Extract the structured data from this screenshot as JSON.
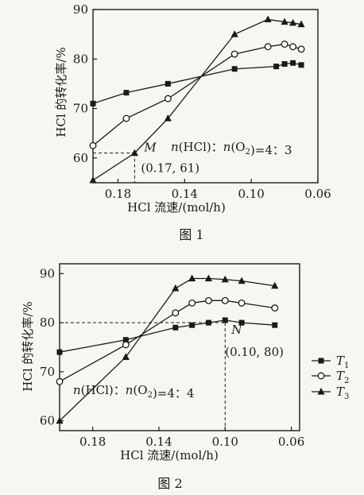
{
  "chart_data": [
    {
      "type": "line",
      "caption": "图 1",
      "xlabel": "HCl 流速/(mol/h)",
      "ylabel": "HCl 的转化率/%",
      "xlim": [
        0.195,
        0.06
      ],
      "ylim": [
        55,
        90
      ],
      "xticks": [
        "0.18",
        "0.14",
        "0.10",
        "0.06"
      ],
      "xtick_values": [
        0.18,
        0.14,
        0.1,
        0.06
      ],
      "yticks": [
        "60",
        "70",
        "80",
        "90"
      ],
      "ytick_values": [
        60,
        70,
        80,
        90
      ],
      "annotation": "n(HCl)：n(O₂)=4：3",
      "point_label": "M",
      "point_coords": "(0.17, 61)",
      "point_x": 0.17,
      "point_y": 61,
      "series": [
        {
          "marker": "square",
          "x": [
            0.195,
            0.175,
            0.15,
            0.11,
            0.085,
            0.08,
            0.075,
            0.07
          ],
          "values": [
            71,
            73.2,
            75,
            78,
            78.5,
            79,
            79.2,
            78.8
          ]
        },
        {
          "marker": "circle",
          "x": [
            0.195,
            0.175,
            0.15,
            0.11,
            0.09,
            0.08,
            0.075,
            0.07
          ],
          "values": [
            62.5,
            68,
            72,
            81,
            82.5,
            83,
            82.5,
            82
          ]
        },
        {
          "marker": "triangle",
          "x": [
            0.195,
            0.17,
            0.15,
            0.11,
            0.09,
            0.08,
            0.075,
            0.07
          ],
          "values": [
            55.5,
            61,
            68,
            85,
            88,
            87.5,
            87.3,
            87
          ]
        }
      ]
    },
    {
      "type": "line",
      "caption": "图 2",
      "xlabel": "HCl 流速/(mol/h)",
      "ylabel": "HCl 的转化率/%",
      "xlim": [
        0.2,
        0.055
      ],
      "ylim": [
        58,
        92
      ],
      "xticks": [
        "0.18",
        "0.14",
        "0.10",
        "0.06"
      ],
      "xtick_values": [
        0.18,
        0.14,
        0.1,
        0.06
      ],
      "yticks": [
        "60",
        "70",
        "80",
        "90"
      ],
      "ytick_values": [
        60,
        70,
        80,
        90
      ],
      "annotation": "n(HCl)：n(O₂)=4：4",
      "point_label": "N",
      "point_coords": "(0.10, 80)",
      "point_x": 0.1,
      "point_y": 80,
      "series": [
        {
          "marker": "square",
          "x": [
            0.2,
            0.16,
            0.13,
            0.12,
            0.11,
            0.1,
            0.09,
            0.07
          ],
          "values": [
            74,
            76.5,
            79,
            79.5,
            80,
            80.5,
            80,
            79.5
          ]
        },
        {
          "marker": "circle",
          "x": [
            0.2,
            0.16,
            0.13,
            0.12,
            0.11,
            0.1,
            0.09,
            0.07
          ],
          "values": [
            68,
            75.5,
            82,
            84,
            84.5,
            84.5,
            84,
            83
          ]
        },
        {
          "marker": "triangle",
          "x": [
            0.2,
            0.16,
            0.13,
            0.12,
            0.11,
            0.1,
            0.09,
            0.07
          ],
          "values": [
            60,
            73,
            87,
            89,
            89,
            88.8,
            88.5,
            87.5
          ]
        }
      ]
    }
  ],
  "legend": {
    "items": [
      {
        "marker": "square",
        "label": "T",
        "sub": "1"
      },
      {
        "marker": "circle",
        "label": "T",
        "sub": "2"
      },
      {
        "marker": "triangle",
        "label": "T",
        "sub": "3"
      }
    ]
  }
}
